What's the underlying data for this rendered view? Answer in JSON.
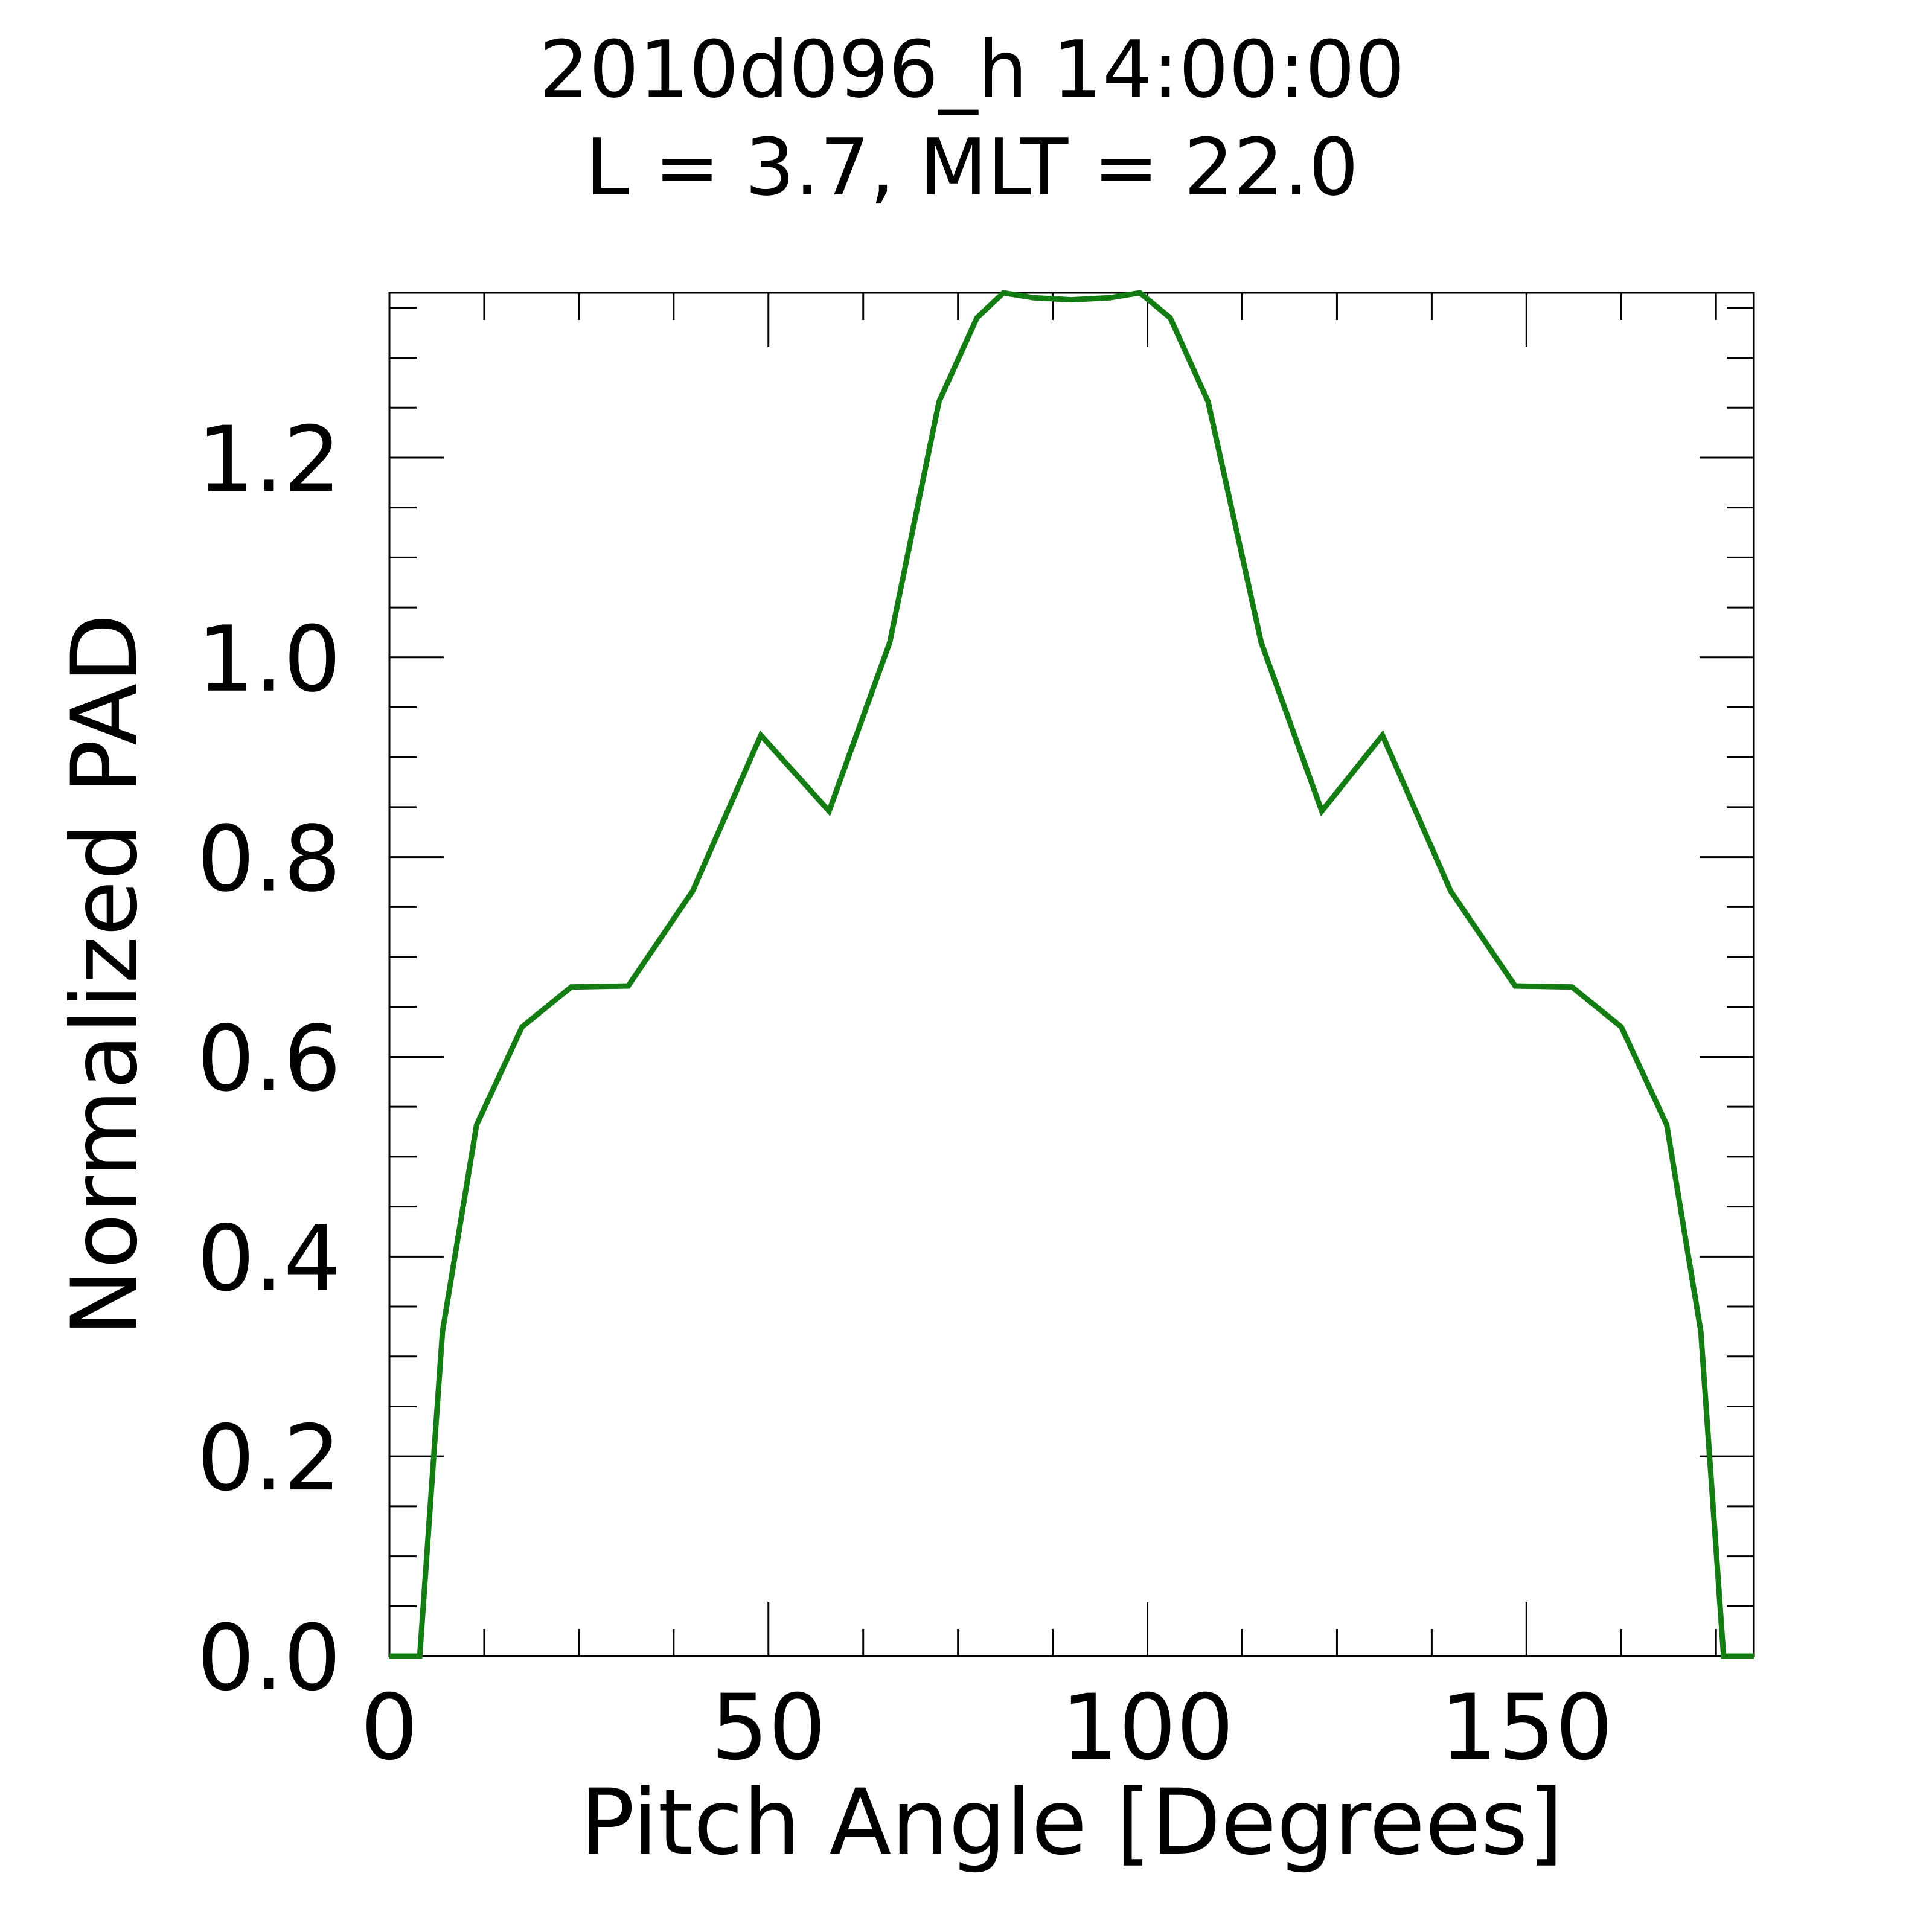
{
  "chart_data": {
    "type": "line",
    "title": "2010d096_h  14:00:00",
    "subtitle": "L = 3.7, MLT = 22.0",
    "xlabel": "Pitch Angle [Degrees]",
    "ylabel": "Normalized PAD",
    "xlim": [
      0,
      180
    ],
    "ylim": [
      0,
      1.365
    ],
    "x_ticks": [
      0,
      50,
      100,
      150
    ],
    "x_tick_labels": [
      "0",
      "50",
      "100",
      "150"
    ],
    "y_ticks": [
      0,
      0.2,
      0.4,
      0.6,
      0.8,
      1.0,
      1.2
    ],
    "y_tick_labels": [
      "0.0",
      "0.2",
      "0.4",
      "0.6",
      "0.8",
      "1.0",
      "1.2"
    ],
    "grid": false,
    "series": [
      {
        "color": "#137c13",
        "x": [
          0,
          4,
          7,
          11.5,
          17.5,
          24,
          31.5,
          40,
          49,
          58,
          66,
          72.5,
          77.5,
          81,
          85,
          90,
          95,
          99,
          103,
          108,
          115,
          123,
          131,
          140,
          148.5,
          156,
          162.5,
          168.5,
          173,
          176,
          180
        ],
        "y": [
          0,
          0,
          0.325,
          0.532,
          0.63,
          0.67,
          0.671,
          0.766,
          0.922,
          0.846,
          1.015,
          1.256,
          1.34,
          1.365,
          1.36,
          1.358,
          1.36,
          1.365,
          1.34,
          1.256,
          1.015,
          0.846,
          0.922,
          0.766,
          0.671,
          0.67,
          0.63,
          0.532,
          0.325,
          0,
          0
        ]
      }
    ]
  }
}
